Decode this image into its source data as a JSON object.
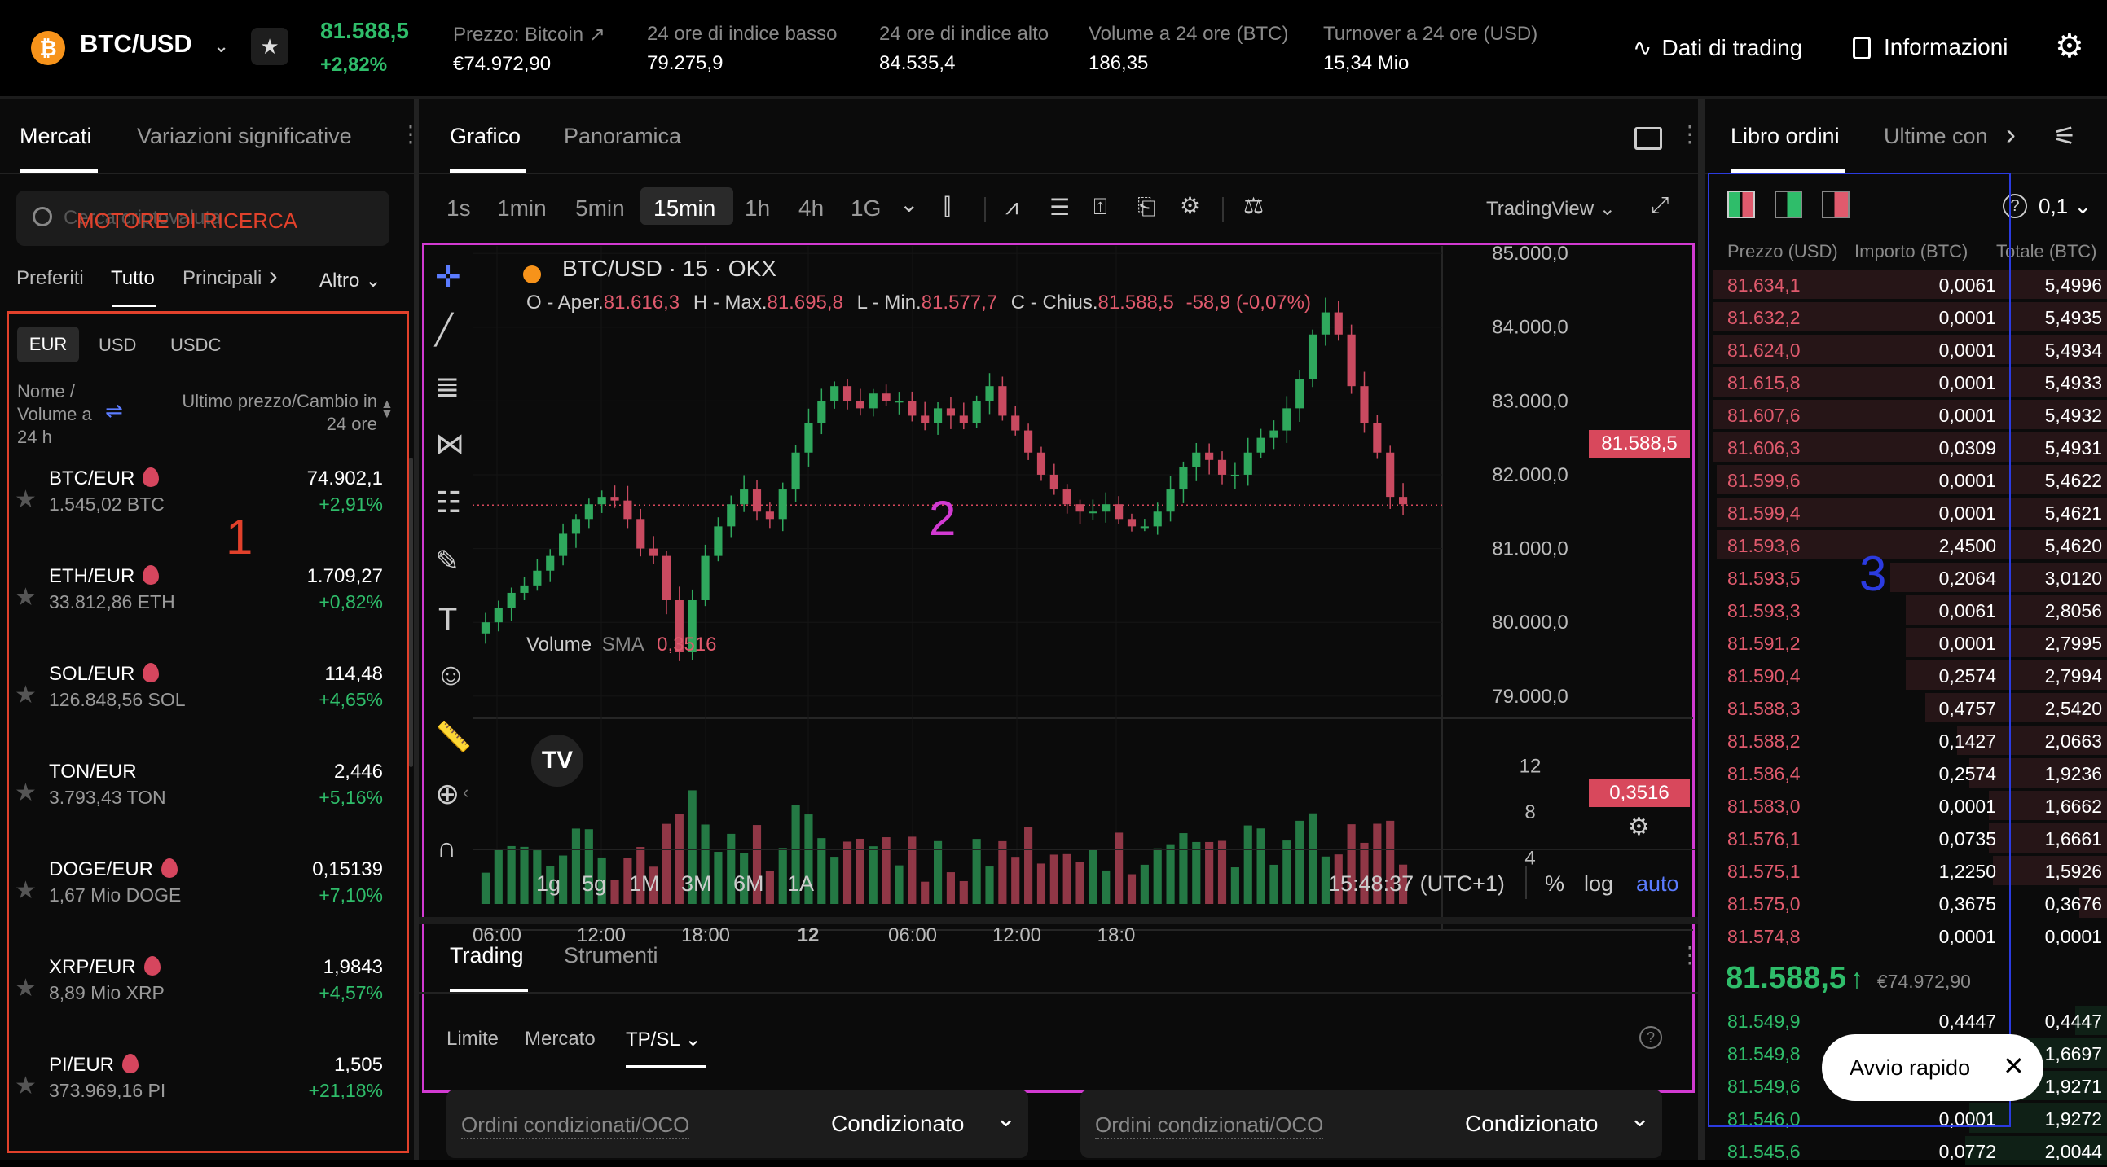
{
  "header": {
    "pair": "BTC/USD",
    "last_price": "81.588,5",
    "change": "+2,82%",
    "stats": [
      {
        "label": "Prezzo: Bitcoin",
        "value": "€74.972,90"
      },
      {
        "label": "24 ore di indice basso",
        "value": "79.275,9"
      },
      {
        "label": "24 ore di indice alto",
        "value": "84.535,4"
      },
      {
        "label": "Volume a 24 ore (BTC)",
        "value": "186,35"
      },
      {
        "label": "Turnover a 24 ore (USD)",
        "value": "15,34 Mio"
      }
    ],
    "trading_data_label": "Dati di trading",
    "info_label": "Informazioni"
  },
  "markets": {
    "tabs": [
      "Mercati",
      "Variazioni significative"
    ],
    "search_placeholder": "Cerca criptovaluta",
    "search_annotation": "MOTORE DI RICERCA",
    "filters": [
      "Preferiti",
      "Tutto",
      "Principali"
    ],
    "more_label": "Altro",
    "currencies": [
      "EUR",
      "USD",
      "USDC"
    ],
    "col_name": "Nome / Volume a 24 h",
    "col_price": "Ultimo prezzo/Cambio in 24 ore",
    "annotation": "1",
    "rows": [
      {
        "pair": "BTC/EUR",
        "volume": "1.545,02 BTC",
        "price": "74.902,1",
        "change": "+2,91%"
      },
      {
        "pair": "ETH/EUR",
        "volume": "33.812,86 ETH",
        "price": "1.709,27",
        "change": "+0,82%"
      },
      {
        "pair": "SOL/EUR",
        "volume": "126.848,56 SOL",
        "price": "114,48",
        "change": "+4,65%"
      },
      {
        "pair": "TON/EUR",
        "volume": "3.793,43 TON",
        "price": "2,446",
        "change": "+5,16%"
      },
      {
        "pair": "DOGE/EUR",
        "volume": "1,67 Mio DOGE",
        "price": "0,15139",
        "change": "+7,10%"
      },
      {
        "pair": "XRP/EUR",
        "volume": "8,89 Mio XRP",
        "price": "1,9843",
        "change": "+4,57%"
      },
      {
        "pair": "PI/EUR",
        "volume": "373.969,16 PI",
        "price": "1,505",
        "change": "+21,18%"
      }
    ]
  },
  "chart_panel": {
    "tabs": [
      "Grafico",
      "Panoramica"
    ],
    "intervals": [
      "1s",
      "1min",
      "5min",
      "15min",
      "1h",
      "4h",
      "1G"
    ],
    "active_interval": "15min",
    "provider": "TradingView",
    "symbol_title": "BTC/USD · 15 · OKX",
    "ohlc": {
      "o_label": "O - Aper.",
      "o": "81.616,3",
      "h_label": "H - Max.",
      "h": "81.695,8",
      "l_label": "L - Min.",
      "l": "81.577,7",
      "c_label": "C - Chius.",
      "c": "81.588,5",
      "change": "-58,9 (-0,07%)"
    },
    "price_tag": "81.588,5",
    "volume_label": "Volume",
    "volume_sma_label": "SMA",
    "volume_sma_value": "0,3516",
    "volume_tag": "0,3516",
    "annotation": "2",
    "ranges": [
      "1g",
      "5g",
      "1M",
      "3M",
      "6M",
      "1A"
    ],
    "clock": "15:48:37 (UTC+1)",
    "scale_opts": [
      "%",
      "log",
      "auto"
    ]
  },
  "chart_data": {
    "type": "candlestick",
    "x_ticks": [
      "06:00",
      "12:00",
      "18:00",
      "12",
      "06:00",
      "12:00",
      "18:0"
    ],
    "y_ticks": [
      "85.000,0",
      "84.000,0",
      "83.000,0",
      "82.000,0",
      "81.000,0",
      "80.000,0",
      "79.000,0"
    ],
    "ylim": [
      78700,
      85100
    ],
    "volume_ticks": [
      "12",
      "8",
      "4"
    ],
    "volume_ylim": [
      0,
      14
    ],
    "last_price": 81588.5,
    "close_path": [
      80000,
      80200,
      80400,
      80500,
      80700,
      80900,
      81200,
      81400,
      81600,
      81700,
      81650,
      81400,
      81000,
      80900,
      80300,
      79600,
      80300,
      80900,
      81300,
      81600,
      81800,
      81500,
      81400,
      81800,
      82300,
      82700,
      83000,
      83200,
      83000,
      82900,
      83100,
      83000,
      83000,
      82800,
      82700,
      82900,
      82800,
      82700,
      83000,
      83200,
      82800,
      82600,
      82300,
      82000,
      81800,
      81600,
      81500,
      81500,
      81600,
      81400,
      81300,
      81300,
      81500,
      81800,
      82100,
      82300,
      82200,
      82000,
      82000,
      82300,
      82500,
      82600,
      82900,
      83300,
      83900,
      84200,
      83900,
      83200,
      82700,
      82300,
      81700,
      81600
    ]
  },
  "trading": {
    "tabs": [
      "Trading",
      "Strumenti"
    ],
    "order_types": [
      "Limite",
      "Mercato",
      "TP/SL"
    ],
    "cond_label": "Ordini condizionati/OCO",
    "cond_value": "Condizionato"
  },
  "orderbook": {
    "tabs": [
      "Libro ordini",
      "Ultime con"
    ],
    "precision": "0,1",
    "cols": [
      "Prezzo (USD)",
      "Importo (BTC)",
      "Totale (BTC)"
    ],
    "annotation": "3",
    "asks": [
      {
        "p": "81.634,1",
        "a": "0,0061",
        "t": "5,4996",
        "d": 1.0
      },
      {
        "p": "81.632,2",
        "a": "0,0001",
        "t": "5,4935",
        "d": 1.0
      },
      {
        "p": "81.624,0",
        "a": "0,0001",
        "t": "5,4934",
        "d": 1.0
      },
      {
        "p": "81.615,8",
        "a": "0,0001",
        "t": "5,4933",
        "d": 1.0
      },
      {
        "p": "81.607,6",
        "a": "0,0001",
        "t": "5,4932",
        "d": 1.0
      },
      {
        "p": "81.606,3",
        "a": "0,0309",
        "t": "5,4931",
        "d": 1.0
      },
      {
        "p": "81.599,6",
        "a": "0,0001",
        "t": "5,4622",
        "d": 0.99
      },
      {
        "p": "81.599,4",
        "a": "0,0001",
        "t": "5,4621",
        "d": 0.99
      },
      {
        "p": "81.593,6",
        "a": "2,4500",
        "t": "5,4620",
        "d": 0.99
      },
      {
        "p": "81.593,5",
        "a": "0,2064",
        "t": "3,0120",
        "d": 0.55
      },
      {
        "p": "81.593,3",
        "a": "0,0061",
        "t": "2,8056",
        "d": 0.51
      },
      {
        "p": "81.591,2",
        "a": "0,0001",
        "t": "2,7995",
        "d": 0.51
      },
      {
        "p": "81.590,4",
        "a": "0,2574",
        "t": "2,7994",
        "d": 0.51
      },
      {
        "p": "81.588,3",
        "a": "0,4757",
        "t": "2,5420",
        "d": 0.46
      },
      {
        "p": "81.588,2",
        "a": "0,1427",
        "t": "2,0663",
        "d": 0.38
      },
      {
        "p": "81.586,4",
        "a": "0,2574",
        "t": "1,9236",
        "d": 0.35
      },
      {
        "p": "81.583,0",
        "a": "0,0001",
        "t": "1,6662",
        "d": 0.3
      },
      {
        "p": "81.576,1",
        "a": "0,0735",
        "t": "1,6661",
        "d": 0.3
      },
      {
        "p": "81.575,1",
        "a": "1,2250",
        "t": "1,5926",
        "d": 0.29
      },
      {
        "p": "81.575,0",
        "a": "0,3675",
        "t": "0,3676",
        "d": 0.07
      },
      {
        "p": "81.574,8",
        "a": "0,0001",
        "t": "0,0001",
        "d": 0.0
      }
    ],
    "mid_price": "81.588,5",
    "mid_fiat": "€74.972,90",
    "bids": [
      {
        "p": "81.549,9",
        "a": "0,4447",
        "t": "0,4447",
        "d": 0.08
      },
      {
        "p": "81.549,8",
        "a": "",
        "t": "1,6697",
        "d": 0.3
      },
      {
        "p": "81.549,6",
        "a": "",
        "t": "1,9271",
        "d": 0.35
      },
      {
        "p": "81.546,0",
        "a": "0,0001",
        "t": "1,9272",
        "d": 0.35
      },
      {
        "p": "81.545,6",
        "a": "0,0772",
        "t": "2,0044",
        "d": 0.36
      }
    ],
    "quick_start": "Avvio rapido"
  }
}
